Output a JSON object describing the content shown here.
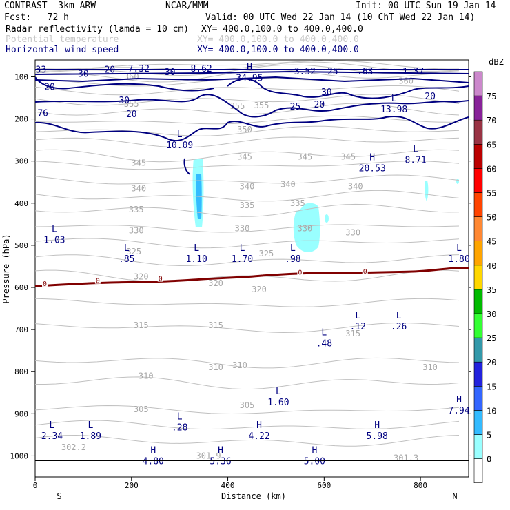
{
  "header": {
    "line1_left": "CONTRAST  3km ARW",
    "line1_center": "NCAR/MMM",
    "line1_right": "Init: 00 UTC Sun 19 Jan 14",
    "line2_left": "Fcst:   72 h",
    "line2_right": "Valid: 00 UTC Wed 22 Jan 14 (10 ChT Wed 22 Jan 14)",
    "fields": [
      {
        "label": "Radar reflectivity (lamda = 10 cm)",
        "xy": "XY= 400.0,100.0 to 400.0,400.0",
        "color": "#000000"
      },
      {
        "label": "Potential temperature",
        "xy": "XY= 400.0,100.0 to 400.0,400.0",
        "color": "#c8c8c8"
      },
      {
        "label": "Horizontal wind speed",
        "xy": "XY= 400.0,100.0 to 400.0,400.0",
        "color": "#000080"
      }
    ]
  },
  "chart_data": {
    "type": "contour",
    "xlabel": "Distance (km)",
    "ylabel": "Pressure (hPa)",
    "xlim": [
      0,
      900
    ],
    "ylim": [
      1050,
      60
    ],
    "xticks": [
      0,
      200,
      400,
      600,
      800
    ],
    "yticks": [
      100,
      200,
      300,
      400,
      500,
      600,
      700,
      800,
      900,
      1000
    ],
    "x_end_labels": {
      "left": "S",
      "right": "N"
    },
    "colorbar": {
      "title": "dBZ",
      "levels": [
        0,
        5,
        10,
        15,
        20,
        25,
        30,
        35,
        40,
        45,
        50,
        55,
        60,
        65,
        70,
        75
      ],
      "colors": [
        "#ffffff",
        "#99ffff",
        "#33bbff",
        "#3366ff",
        "#2222dd",
        "#3399aa",
        "#33ff33",
        "#00bb00",
        "#ffd700",
        "#ffa500",
        "#ff8833",
        "#ff4400",
        "#ff0000",
        "#bb0000",
        "#993344",
        "#882299",
        "#cc88cc"
      ]
    },
    "theta_labels": [
      {
        "text": "350",
        "x": 435,
        "p": 225
      },
      {
        "text": "345",
        "x": 215,
        "p": 305
      },
      {
        "text": "345",
        "x": 435,
        "p": 290
      },
      {
        "text": "345",
        "x": 560,
        "p": 290
      },
      {
        "text": "345",
        "x": 650,
        "p": 290
      },
      {
        "text": "340",
        "x": 215,
        "p": 365
      },
      {
        "text": "340",
        "x": 440,
        "p": 360
      },
      {
        "text": "340",
        "x": 525,
        "p": 355
      },
      {
        "text": "340",
        "x": 665,
        "p": 360
      },
      {
        "text": "335",
        "x": 210,
        "p": 415
      },
      {
        "text": "335",
        "x": 440,
        "p": 405
      },
      {
        "text": "335",
        "x": 545,
        "p": 400
      },
      {
        "text": "330",
        "x": 210,
        "p": 465
      },
      {
        "text": "330",
        "x": 430,
        "p": 460
      },
      {
        "text": "330",
        "x": 560,
        "p": 460
      },
      {
        "text": "330",
        "x": 660,
        "p": 470
      },
      {
        "text": "325",
        "x": 205,
        "p": 515
      },
      {
        "text": "325",
        "x": 480,
        "p": 520
      },
      {
        "text": "320",
        "x": 220,
        "p": 575
      },
      {
        "text": "320",
        "x": 375,
        "p": 590
      },
      {
        "text": "320",
        "x": 465,
        "p": 605
      },
      {
        "text": "315",
        "x": 220,
        "p": 690
      },
      {
        "text": "315",
        "x": 375,
        "p": 690
      },
      {
        "text": "315",
        "x": 660,
        "p": 710
      },
      {
        "text": "310",
        "x": 230,
        "p": 810
      },
      {
        "text": "310",
        "x": 375,
        "p": 790
      },
      {
        "text": "310",
        "x": 425,
        "p": 785
      },
      {
        "text": "310",
        "x": 820,
        "p": 790
      },
      {
        "text": "305",
        "x": 220,
        "p": 890
      },
      {
        "text": "305",
        "x": 440,
        "p": 880
      },
      {
        "text": "302.2",
        "x": 80,
        "p": 980
      },
      {
        "text": "301.9",
        "x": 360,
        "p": 1000
      },
      {
        "text": "301.3",
        "x": 770,
        "p": 1005
      },
      {
        "text": "360",
        "x": 200,
        "p": 100
      },
      {
        "text": "360",
        "x": 770,
        "p": 110
      },
      {
        "text": "355",
        "x": 200,
        "p": 165
      },
      {
        "text": "355",
        "x": 420,
        "p": 170
      },
      {
        "text": "355",
        "x": 470,
        "p": 168
      }
    ],
    "wind_labels": [
      {
        "text": "33",
        "x": 12,
        "p": 82
      },
      {
        "text": "30",
        "x": 100,
        "p": 92
      },
      {
        "text": "20",
        "x": 155,
        "p": 82
      },
      {
        "text": "7.32",
        "x": 215,
        "p": 80
      },
      {
        "text": "30",
        "x": 280,
        "p": 88
      },
      {
        "text": "8.62",
        "x": 345,
        "p": 80
      },
      {
        "text": "3.52",
        "x": 560,
        "p": 86
      },
      {
        "text": "25",
        "x": 618,
        "p": 86
      },
      {
        "text": ".63",
        "x": 685,
        "p": 86
      },
      {
        "text": "1.37",
        "x": 785,
        "p": 86
      },
      {
        "text": "20",
        "x": 30,
        "p": 123
      },
      {
        "text": "30",
        "x": 185,
        "p": 155
      },
      {
        "text": "30",
        "x": 605,
        "p": 135
      },
      {
        "text": "20",
        "x": 820,
        "p": 145
      },
      {
        "text": "20",
        "x": 200,
        "p": 188
      },
      {
        "text": "25",
        "x": 540,
        "p": 170
      },
      {
        "text": "20",
        "x": 590,
        "p": 165
      },
      {
        "text": "76",
        "x": 16,
        "p": 185
      }
    ],
    "extrema_wind": [
      {
        "kind": "H",
        "value": "34.95",
        "x": 445,
        "p": 90
      },
      {
        "kind": "L",
        "value": "13.98",
        "x": 745,
        "p": 165
      },
      {
        "kind": "L",
        "value": "10.09",
        "x": 300,
        "p": 250
      },
      {
        "kind": "L",
        "value": "8.71",
        "x": 790,
        "p": 285
      },
      {
        "kind": "H",
        "value": "20.53",
        "x": 700,
        "p": 305
      }
    ],
    "extrema_sfc": [
      {
        "kind": "L",
        "value": "1.03",
        "x": 40,
        "p": 475
      },
      {
        "kind": "L",
        "value": ".85",
        "x": 190,
        "p": 520
      },
      {
        "kind": "L",
        "value": "1.10",
        "x": 335,
        "p": 520
      },
      {
        "kind": "L",
        "value": "1.70",
        "x": 430,
        "p": 520
      },
      {
        "kind": "L",
        "value": ".98",
        "x": 535,
        "p": 520
      },
      {
        "kind": "L",
        "value": "1.80",
        "x": 880,
        "p": 520
      },
      {
        "kind": "L",
        "value": ".12",
        "x": 670,
        "p": 680
      },
      {
        "kind": "L",
        "value": ".26",
        "x": 755,
        "p": 680
      },
      {
        "kind": "L",
        "value": ".48",
        "x": 600,
        "p": 720
      },
      {
        "kind": "L",
        "value": "1.60",
        "x": 505,
        "p": 860
      },
      {
        "kind": "H",
        "value": "7.94",
        "x": 880,
        "p": 880
      },
      {
        "kind": "L",
        "value": "2.34",
        "x": 35,
        "p": 940
      },
      {
        "kind": "L",
        "value": "1.89",
        "x": 115,
        "p": 940
      },
      {
        "kind": "L",
        "value": ".28",
        "x": 300,
        "p": 920
      },
      {
        "kind": "H",
        "value": "4.22",
        "x": 465,
        "p": 940
      },
      {
        "kind": "H",
        "value": "5.98",
        "x": 710,
        "p": 940
      },
      {
        "kind": "H",
        "value": "4.80",
        "x": 245,
        "p": 1000
      },
      {
        "kind": "H",
        "value": "5.36",
        "x": 385,
        "p": 1000
      },
      {
        "kind": "H",
        "value": "5.00",
        "x": 580,
        "p": 1000
      }
    ],
    "zero_contour_labels": [
      {
        "text": "0",
        "x": 20,
        "p": 590
      },
      {
        "text": "0",
        "x": 130,
        "p": 583
      },
      {
        "text": "0",
        "x": 260,
        "p": 578
      },
      {
        "text": "0",
        "x": 550,
        "p": 563
      },
      {
        "text": "0",
        "x": 685,
        "p": 561
      }
    ]
  }
}
